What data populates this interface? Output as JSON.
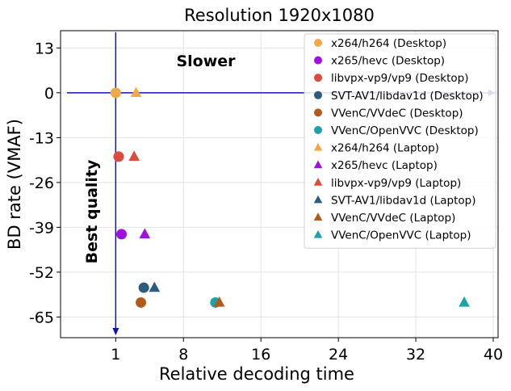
{
  "chart_data": {
    "type": "scatter",
    "title": "Resolution 1920x1080",
    "xlabel": "Relative decoding time",
    "ylabel": "BD rate (VMAF)",
    "xlim": [
      -4.7,
      40.5
    ],
    "ylim": [
      -71,
      18
    ],
    "xticks": [
      1,
      8,
      16,
      24,
      32,
      40
    ],
    "yticks": [
      13,
      0,
      -13,
      -26,
      -39,
      -52,
      -65
    ],
    "ytick_labels": [
      "13",
      "0",
      "-13",
      "-26",
      "-39",
      "-52",
      "-65"
    ],
    "grid": true,
    "legend_position": "top-right",
    "annotations": {
      "slower": "Slower",
      "best_quality": "Best quality"
    },
    "reference_point": {
      "x": 1,
      "y": 0
    },
    "series": [
      {
        "name": "x264/h264 (Desktop)",
        "marker": "circle",
        "color": "#f0a84a",
        "points": [
          {
            "x": 1.0,
            "y": 0.0
          }
        ]
      },
      {
        "name": "x265/hevc (Desktop)",
        "marker": "circle",
        "color": "#a010e0",
        "points": [
          {
            "x": 1.6,
            "y": -41.0
          }
        ]
      },
      {
        "name": "libvpx-vp9/vp9 (Desktop)",
        "marker": "circle",
        "color": "#e04a3c",
        "points": [
          {
            "x": 1.3,
            "y": -18.5
          }
        ]
      },
      {
        "name": "SVT-AV1/libdav1d (Desktop)",
        "marker": "circle",
        "color": "#2d5b7e",
        "points": [
          {
            "x": 3.9,
            "y": -56.5
          }
        ]
      },
      {
        "name": "VVenC/VVdeC (Desktop)",
        "marker": "circle",
        "color": "#b05a1c",
        "points": [
          {
            "x": 3.6,
            "y": -60.8
          }
        ]
      },
      {
        "name": "VVenC/OpenVVC (Desktop)",
        "marker": "circle",
        "color": "#1aa3a8",
        "points": [
          {
            "x": 11.3,
            "y": -60.8
          }
        ]
      },
      {
        "name": "x264/h264 (Laptop)",
        "marker": "triangle",
        "color": "#f0a84a",
        "points": [
          {
            "x": 3.1,
            "y": 0.0
          }
        ]
      },
      {
        "name": "x265/hevc (Laptop)",
        "marker": "triangle",
        "color": "#a010e0",
        "points": [
          {
            "x": 4.0,
            "y": -41.0
          }
        ]
      },
      {
        "name": "libvpx-vp9/vp9 (Laptop)",
        "marker": "triangle",
        "color": "#e04a3c",
        "points": [
          {
            "x": 2.9,
            "y": -18.5
          }
        ]
      },
      {
        "name": "SVT-AV1/libdav1d (Laptop)",
        "marker": "triangle",
        "color": "#2d5b7e",
        "points": [
          {
            "x": 5.0,
            "y": -56.5
          }
        ]
      },
      {
        "name": "VVenC/VVdeC (Laptop)",
        "marker": "triangle",
        "color": "#b05a1c",
        "points": [
          {
            "x": 11.7,
            "y": -60.8
          }
        ]
      },
      {
        "name": "VVenC/OpenVVC (Laptop)",
        "marker": "triangle",
        "color": "#1aa3a8",
        "points": [
          {
            "x": 37.0,
            "y": -60.8
          }
        ]
      }
    ]
  }
}
